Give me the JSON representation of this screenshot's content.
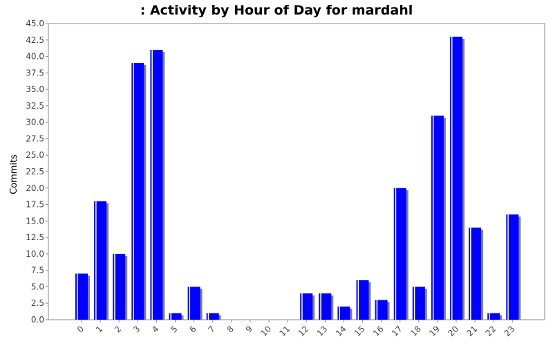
{
  "chart_data": {
    "type": "bar",
    "title": ": Activity by Hour of Day for mardahl",
    "xlabel": "",
    "ylabel": "Commits",
    "categories": [
      "0",
      "1",
      "2",
      "3",
      "4",
      "5",
      "6",
      "7",
      "8",
      "9",
      "10",
      "11",
      "12",
      "13",
      "14",
      "15",
      "16",
      "17",
      "18",
      "19",
      "20",
      "21",
      "22",
      "23"
    ],
    "values": [
      7,
      18,
      10,
      39,
      41,
      1,
      5,
      1,
      0,
      0,
      0,
      0,
      4,
      4,
      2,
      6,
      3,
      20,
      5,
      31,
      43,
      14,
      1,
      16
    ],
    "ylim": [
      0,
      45
    ],
    "yticks": [
      "0.0",
      "2.5",
      "5.0",
      "7.5",
      "10.0",
      "12.5",
      "15.0",
      "17.5",
      "20.0",
      "22.5",
      "25.0",
      "27.5",
      "30.0",
      "32.5",
      "35.0",
      "37.5",
      "40.0",
      "42.5",
      "45.0"
    ],
    "grid": false,
    "colors": {
      "bar": "#0000ff",
      "shadow": "#808080",
      "highlight": "#ffffff",
      "axis": "#888888"
    }
  }
}
